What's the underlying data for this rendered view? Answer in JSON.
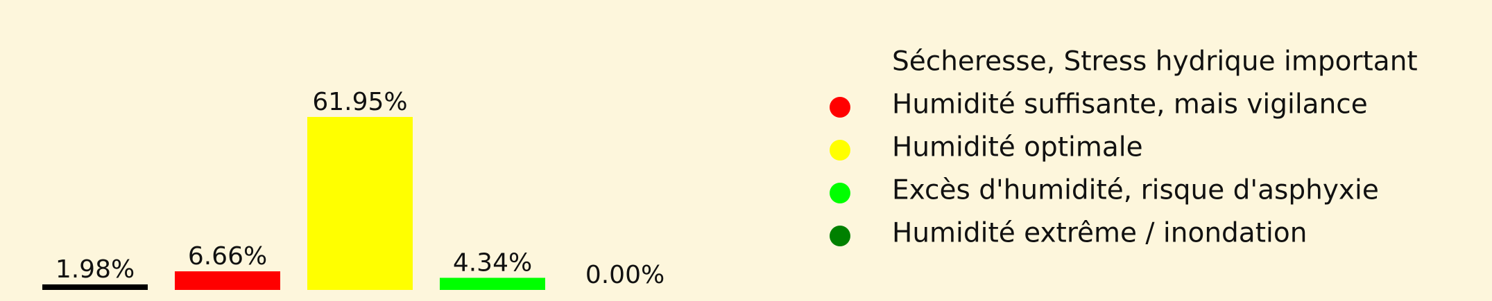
{
  "colors": {
    "background": "#fdf6dc",
    "text": "#111111"
  },
  "chart_data": {
    "type": "bar",
    "title": "",
    "xlabel": "",
    "ylabel": "",
    "grid": false,
    "legend_placement": "right",
    "ylim": [
      0,
      65
    ],
    "categories": [
      "Sécheresse, Stress hydrique important",
      "Humidité suffisante, mais vigilance",
      "Humidité optimale",
      "Excès d'humidité, risque d'asphyxie",
      "Humidité extrême / inondation"
    ],
    "values": [
      1.98,
      6.66,
      61.95,
      4.34,
      0.0
    ],
    "value_labels": [
      "1.98%",
      "6.66%",
      "61.95%",
      "4.34%",
      "0.00%"
    ],
    "series_colors": [
      "#000000",
      "#ff0000",
      "#ffff00",
      "#00ff00",
      "#008000"
    ],
    "legend": [
      {
        "label": "Sécheresse, Stress hydrique important",
        "color": "#000000",
        "marker": "none"
      },
      {
        "label": "Humidité suffisante, mais vigilance",
        "color": "#ff0000",
        "marker": "circle"
      },
      {
        "label": "Humidité optimale",
        "color": "#ffff00",
        "marker": "circle"
      },
      {
        "label": "Excès d'humidité, risque d'asphyxie",
        "color": "#00ff00",
        "marker": "circle"
      },
      {
        "label": "Humidité extrême / inondation",
        "color": "#008000",
        "marker": "circle"
      }
    ]
  }
}
